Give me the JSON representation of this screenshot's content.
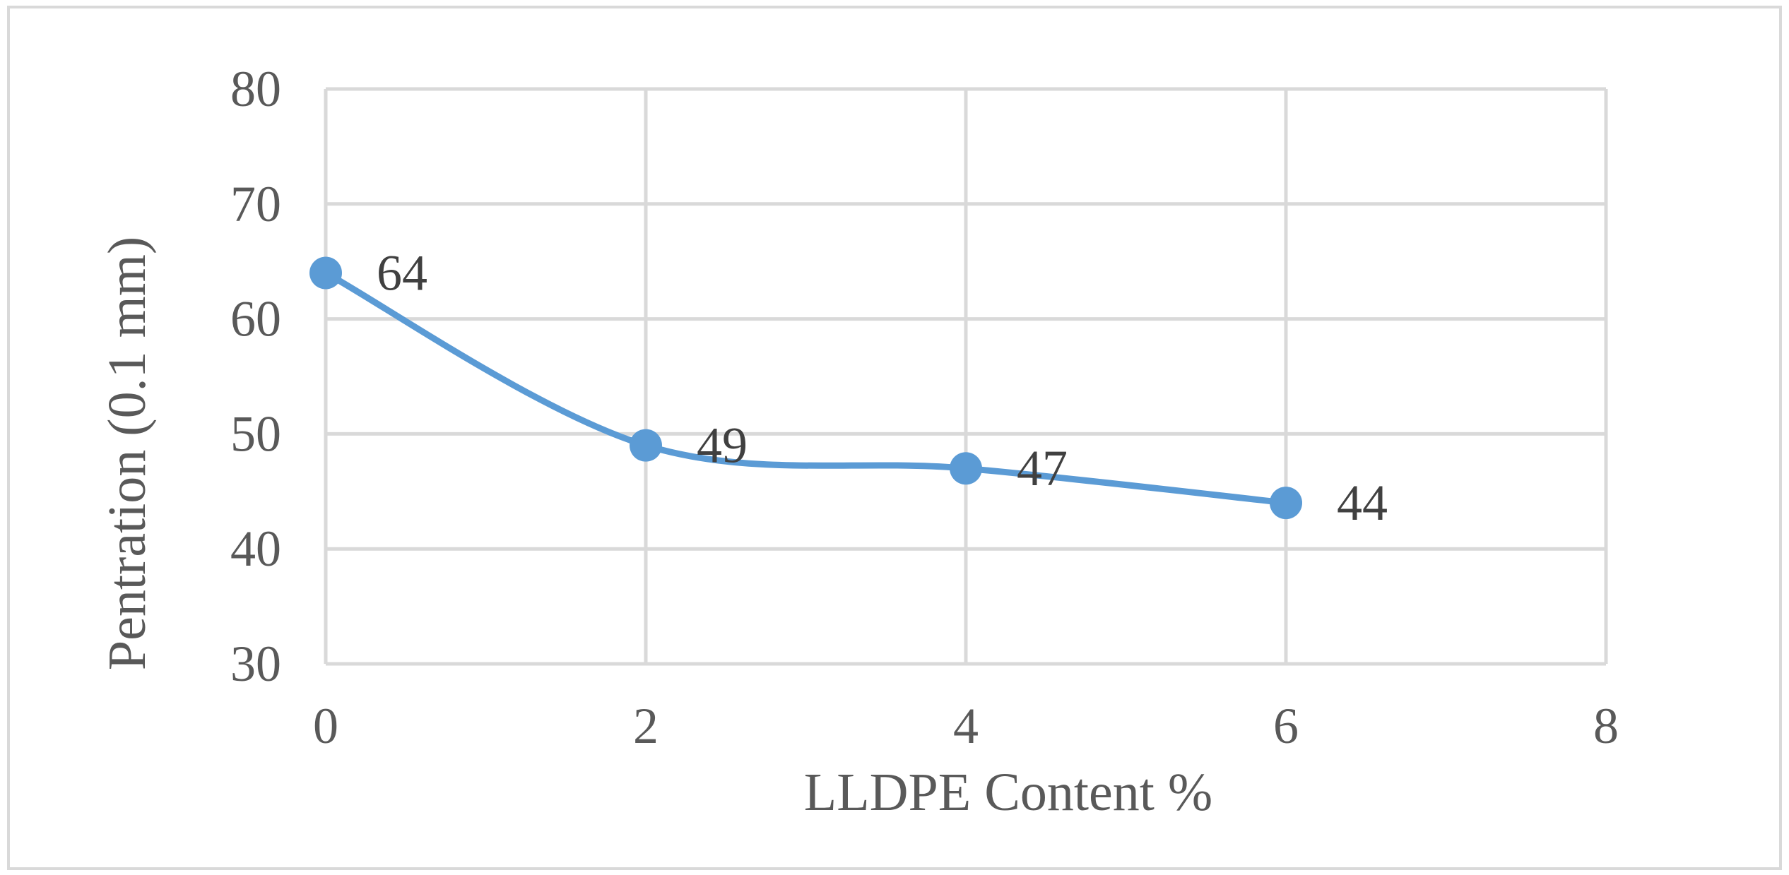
{
  "chart_data": {
    "type": "line",
    "smooth": true,
    "title": "",
    "xlabel": "LLDPE Content %",
    "ylabel": "Pentration (0.1 mm)",
    "xlim": [
      0,
      8
    ],
    "ylim": [
      30,
      80
    ],
    "x_ticks": [
      0,
      2,
      4,
      6,
      8
    ],
    "y_ticks": [
      30,
      40,
      50,
      60,
      70,
      80
    ],
    "grid": true,
    "legend": "none",
    "series": [
      {
        "x": [
          0,
          2,
          4,
          6
        ],
        "y": [
          64,
          49,
          47,
          44
        ],
        "data_labels": [
          "64",
          "49",
          "47",
          "44"
        ],
        "color": "#5B9BD5"
      }
    ]
  },
  "colors": {
    "grid": "#D9D9D9",
    "tick_text": "#595959",
    "data_label_text": "#404040",
    "frame": "#D9D9D9"
  }
}
